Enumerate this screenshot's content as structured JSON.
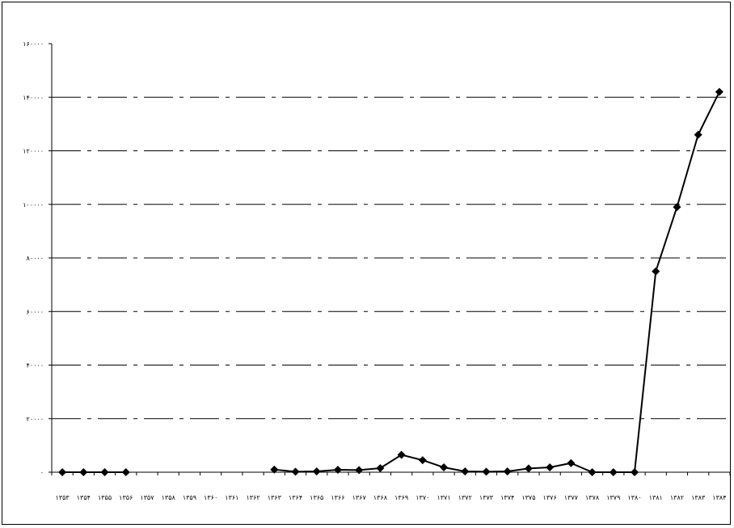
{
  "chart_data": {
    "type": "line",
    "title": "",
    "xlabel": "",
    "ylabel": "",
    "ylim": [
      0,
      160000
    ],
    "yticks": [
      0,
      20000,
      40000,
      60000,
      80000,
      100000,
      120000,
      140000,
      160000
    ],
    "ytick_labels": [
      "۰",
      "۲۰۰۰۰",
      "۴۰۰۰۰",
      "۶۰۰۰۰",
      "۸۰۰۰۰",
      "۱۰۰۰۰۰",
      "۱۲۰۰۰۰",
      "۱۴۰۰۰۰",
      "۱۶۰۰۰۰"
    ],
    "categories": [
      "۱۳۵۳",
      "۱۳۵۴",
      "۱۳۵۵",
      "۱۳۵۶",
      "۱۳۵۷",
      "۱۳۵۸",
      "۱۳۵۹",
      "۱۳۶۰",
      "۱۳۶۱",
      "۱۳۶۲",
      "۱۳۶۳",
      "۱۳۶۴",
      "۱۳۶۵",
      "۱۳۶۶",
      "۱۳۶۷",
      "۱۳۶۸",
      "۱۳۶۹",
      "۱۳۷۰",
      "۱۳۷۱",
      "۱۳۷۲",
      "۱۳۷۳",
      "۱۳۷۴",
      "۱۳۷۵",
      "۱۳۷۶",
      "۱۳۷۷",
      "۱۳۷۸",
      "۱۳۷۹",
      "۱۳۸۰",
      "۱۳۸۱",
      "۱۳۸۲",
      "۱۳۸۳",
      "۱۳۸۴"
    ],
    "series": [
      {
        "values": [
          0,
          0,
          0,
          0,
          null,
          null,
          null,
          null,
          null,
          null,
          1000,
          200,
          300,
          900,
          800,
          1500,
          6500,
          4500,
          1800,
          300,
          200,
          300,
          1400,
          1800,
          3400,
          0,
          0,
          0,
          75000,
          99000,
          126000,
          142000
        ]
      }
    ],
    "grid": "horizontal dash-dot",
    "legend": "none",
    "line_color": "#000000",
    "marker": "diamond"
  }
}
